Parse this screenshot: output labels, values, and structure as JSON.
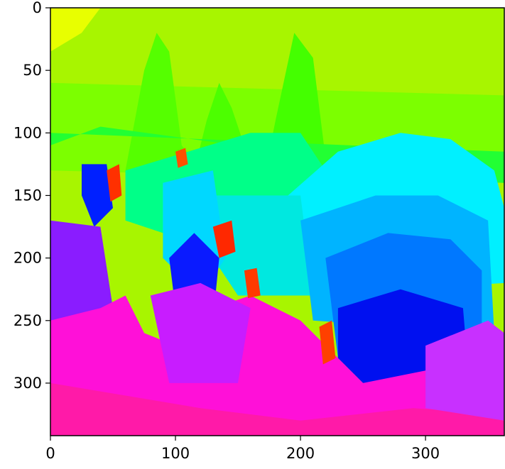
{
  "chart_data": {
    "type": "heatmap",
    "title": "",
    "xlabel": "",
    "ylabel": "",
    "colormap": "hsv",
    "xlim": [
      0,
      363
    ],
    "ylim": [
      342,
      0
    ],
    "x_ticks": [
      {
        "value": 0,
        "label": "0"
      },
      {
        "value": 100,
        "label": "100"
      },
      {
        "value": 200,
        "label": "200"
      },
      {
        "value": 300,
        "label": "300"
      }
    ],
    "y_ticks": [
      {
        "value": 0,
        "label": "0"
      },
      {
        "value": 50,
        "label": "50"
      },
      {
        "value": 100,
        "label": "100"
      },
      {
        "value": 150,
        "label": "150"
      },
      {
        "value": 200,
        "label": "200"
      },
      {
        "value": 250,
        "label": "250"
      },
      {
        "value": 300,
        "label": "300"
      }
    ],
    "regions": [
      {
        "name": "lime-sky",
        "color": "#a8f500",
        "points": [
          [
            0,
            0
          ],
          [
            363,
            0
          ],
          [
            363,
            130
          ],
          [
            0,
            130
          ]
        ]
      },
      {
        "name": "yellow-corner",
        "color": "#e8ff00",
        "points": [
          [
            0,
            0
          ],
          [
            40,
            0
          ],
          [
            25,
            20
          ],
          [
            0,
            35
          ]
        ]
      },
      {
        "name": "green-band",
        "color": "#7cff00",
        "points": [
          [
            0,
            60
          ],
          [
            363,
            70
          ],
          [
            363,
            140
          ],
          [
            0,
            130
          ]
        ]
      },
      {
        "name": "green-peak-left",
        "color": "#55ff00",
        "points": [
          [
            60,
            130
          ],
          [
            75,
            50
          ],
          [
            85,
            20
          ],
          [
            95,
            35
          ],
          [
            105,
            110
          ],
          [
            120,
            130
          ]
        ]
      },
      {
        "name": "green-peak-mid",
        "color": "#4cff00",
        "points": [
          [
            115,
            130
          ],
          [
            125,
            90
          ],
          [
            135,
            60
          ],
          [
            145,
            80
          ],
          [
            155,
            110
          ],
          [
            165,
            130
          ]
        ]
      },
      {
        "name": "green-peak-right",
        "color": "#44ff00",
        "points": [
          [
            170,
            140
          ],
          [
            180,
            90
          ],
          [
            195,
            20
          ],
          [
            210,
            40
          ],
          [
            220,
            120
          ],
          [
            230,
            140
          ]
        ]
      },
      {
        "name": "green-lower",
        "color": "#22ff33",
        "points": [
          [
            0,
            100
          ],
          [
            363,
            115
          ],
          [
            363,
            140
          ],
          [
            250,
            135
          ],
          [
            220,
            128
          ],
          [
            150,
            110
          ],
          [
            40,
            95
          ],
          [
            0,
            110
          ]
        ]
      },
      {
        "name": "spring-band",
        "color": "#00ff88",
        "points": [
          [
            60,
            130
          ],
          [
            160,
            100
          ],
          [
            200,
            100
          ],
          [
            220,
            130
          ],
          [
            200,
            180
          ],
          [
            120,
            190
          ],
          [
            60,
            170
          ]
        ]
      },
      {
        "name": "cyan-dome",
        "color": "#00f0ff",
        "points": [
          [
            190,
            150
          ],
          [
            230,
            115
          ],
          [
            280,
            100
          ],
          [
            320,
            105
          ],
          [
            355,
            130
          ],
          [
            363,
            160
          ],
          [
            363,
            220
          ],
          [
            200,
            230
          ]
        ]
      },
      {
        "name": "mid-cyan",
        "color": "#00e8e0",
        "points": [
          [
            130,
            150
          ],
          [
            200,
            150
          ],
          [
            210,
            230
          ],
          [
            150,
            230
          ],
          [
            130,
            200
          ]
        ]
      },
      {
        "name": "teal-left",
        "color": "#00d8ff",
        "points": [
          [
            90,
            140
          ],
          [
            130,
            130
          ],
          [
            140,
            200
          ],
          [
            120,
            230
          ],
          [
            90,
            200
          ]
        ]
      },
      {
        "name": "sky-blue-layer",
        "color": "#00b4ff",
        "points": [
          [
            200,
            170
          ],
          [
            260,
            150
          ],
          [
            310,
            150
          ],
          [
            350,
            170
          ],
          [
            355,
            260
          ],
          [
            210,
            250
          ]
        ]
      },
      {
        "name": "azure-layer",
        "color": "#0078ff",
        "points": [
          [
            220,
            200
          ],
          [
            270,
            180
          ],
          [
            320,
            185
          ],
          [
            345,
            210
          ],
          [
            345,
            280
          ],
          [
            230,
            280
          ]
        ]
      },
      {
        "name": "blue-core",
        "color": "#0010f0",
        "points": [
          [
            230,
            240
          ],
          [
            280,
            225
          ],
          [
            330,
            240
          ],
          [
            335,
            300
          ],
          [
            250,
            300
          ],
          [
            230,
            280
          ]
        ]
      },
      {
        "name": "blue-left-notch",
        "color": "#0020ff",
        "points": [
          [
            25,
            125
          ],
          [
            45,
            125
          ],
          [
            50,
            160
          ],
          [
            35,
            175
          ],
          [
            25,
            150
          ]
        ]
      },
      {
        "name": "blue-center",
        "color": "#0a1aff",
        "points": [
          [
            95,
            200
          ],
          [
            115,
            180
          ],
          [
            135,
            200
          ],
          [
            130,
            250
          ],
          [
            100,
            240
          ]
        ]
      },
      {
        "name": "violet-left",
        "color": "#8a1cff",
        "points": [
          [
            0,
            170
          ],
          [
            40,
            175
          ],
          [
            50,
            240
          ],
          [
            0,
            270
          ]
        ]
      },
      {
        "name": "magenta-main",
        "color": "#ff10d8",
        "points": [
          [
            0,
            250
          ],
          [
            40,
            240
          ],
          [
            60,
            230
          ],
          [
            75,
            260
          ],
          [
            100,
            270
          ],
          [
            130,
            240
          ],
          [
            160,
            230
          ],
          [
            200,
            250
          ],
          [
            250,
            300
          ],
          [
            300,
            290
          ],
          [
            363,
            300
          ],
          [
            363,
            342
          ],
          [
            0,
            342
          ]
        ]
      },
      {
        "name": "pink-bottom",
        "color": "#ff1aa8",
        "points": [
          [
            0,
            300
          ],
          [
            120,
            320
          ],
          [
            200,
            330
          ],
          [
            290,
            320
          ],
          [
            363,
            325
          ],
          [
            363,
            342
          ],
          [
            0,
            342
          ]
        ]
      },
      {
        "name": "purple-patch",
        "color": "#c81cff",
        "points": [
          [
            80,
            230
          ],
          [
            120,
            220
          ],
          [
            160,
            240
          ],
          [
            150,
            300
          ],
          [
            95,
            300
          ]
        ]
      },
      {
        "name": "purple-right",
        "color": "#c830ff",
        "points": [
          [
            300,
            270
          ],
          [
            350,
            250
          ],
          [
            363,
            260
          ],
          [
            363,
            330
          ],
          [
            300,
            320
          ]
        ]
      },
      {
        "name": "red-speck-1",
        "color": "#ff3000",
        "points": [
          [
            45,
            130
          ],
          [
            55,
            125
          ],
          [
            57,
            150
          ],
          [
            48,
            155
          ]
        ]
      },
      {
        "name": "red-speck-2",
        "color": "#ff5000",
        "points": [
          [
            100,
            115
          ],
          [
            108,
            112
          ],
          [
            110,
            125
          ],
          [
            102,
            128
          ]
        ]
      },
      {
        "name": "red-speck-3",
        "color": "#ff2800",
        "points": [
          [
            130,
            175
          ],
          [
            145,
            170
          ],
          [
            148,
            195
          ],
          [
            135,
            200
          ]
        ]
      },
      {
        "name": "red-speck-4",
        "color": "#ff3a00",
        "points": [
          [
            155,
            210
          ],
          [
            165,
            208
          ],
          [
            168,
            230
          ],
          [
            158,
            232
          ]
        ]
      },
      {
        "name": "red-speck-5",
        "color": "#ff4000",
        "points": [
          [
            215,
            255
          ],
          [
            225,
            250
          ],
          [
            228,
            280
          ],
          [
            218,
            285
          ]
        ]
      }
    ]
  }
}
